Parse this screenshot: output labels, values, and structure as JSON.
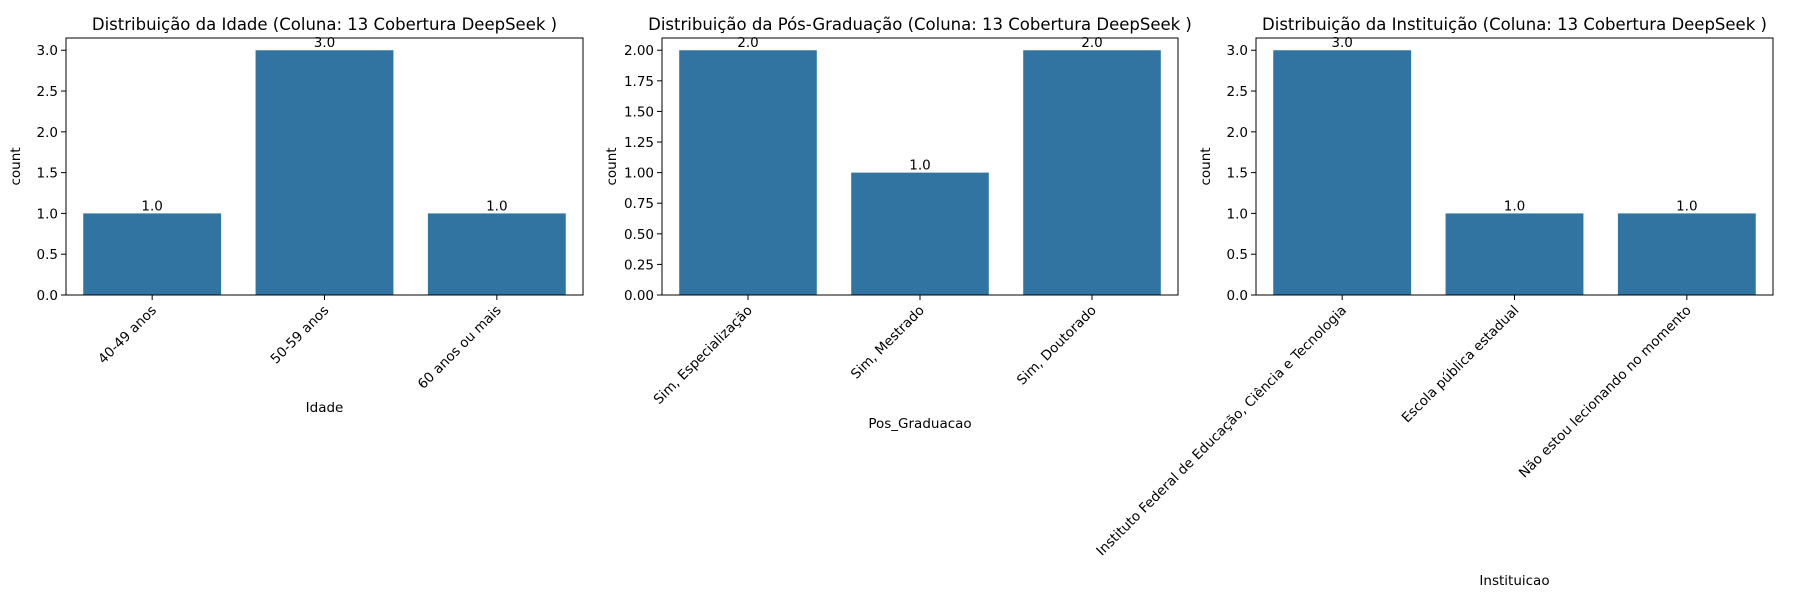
{
  "colors": {
    "bar": "#3274a1"
  },
  "chart_data": [
    {
      "type": "bar",
      "title": "Distribuição da Idade (Coluna: 13 Cobertura DeepSeek )",
      "xlabel": "Idade",
      "ylabel": "count",
      "categories": [
        "40-49 anos",
        "50-59 anos",
        "60 anos ou mais"
      ],
      "values": [
        1,
        3,
        1
      ],
      "value_labels": [
        "1.0",
        "3.0",
        "1.0"
      ],
      "ylim": [
        0,
        3.15
      ],
      "yticks": [
        0,
        0.5,
        1,
        1.5,
        2,
        2.5,
        3
      ],
      "ytick_labels": [
        "0.0",
        "0.5",
        "1.0",
        "1.5",
        "2.0",
        "2.5",
        "3.0"
      ],
      "grid": false,
      "tick_rotation": 45
    },
    {
      "type": "bar",
      "title": "Distribuição da Pós-Graduação (Coluna: 13 Cobertura DeepSeek )",
      "xlabel": "Pos_Graduacao",
      "ylabel": "count",
      "categories": [
        "Sim, Especialização",
        "Sim, Mestrado",
        "Sim, Doutorado"
      ],
      "values": [
        2,
        1,
        2
      ],
      "value_labels": [
        "2.0",
        "1.0",
        "2.0"
      ],
      "ylim": [
        0,
        2.1
      ],
      "yticks": [
        0,
        0.25,
        0.5,
        0.75,
        1,
        1.25,
        1.5,
        1.75,
        2
      ],
      "ytick_labels": [
        "0.00",
        "0.25",
        "0.50",
        "0.75",
        "1.00",
        "1.25",
        "1.50",
        "1.75",
        "2.00"
      ],
      "grid": false,
      "tick_rotation": 45
    },
    {
      "type": "bar",
      "title": "Distribuição da Instituição (Coluna: 13 Cobertura DeepSeek )",
      "xlabel": "Instituicao",
      "ylabel": "count",
      "categories": [
        "Instituto Federal de Educação, Ciência e Tecnologia",
        "Escola pública estadual",
        "Não estou lecionando no momento"
      ],
      "values": [
        3,
        1,
        1
      ],
      "value_labels": [
        "3.0",
        "1.0",
        "1.0"
      ],
      "ylim": [
        0,
        3.15
      ],
      "yticks": [
        0,
        0.5,
        1,
        1.5,
        2,
        2.5,
        3
      ],
      "ytick_labels": [
        "0.0",
        "0.5",
        "1.0",
        "1.5",
        "2.0",
        "2.5",
        "3.0"
      ],
      "grid": false,
      "tick_rotation": 45
    }
  ]
}
